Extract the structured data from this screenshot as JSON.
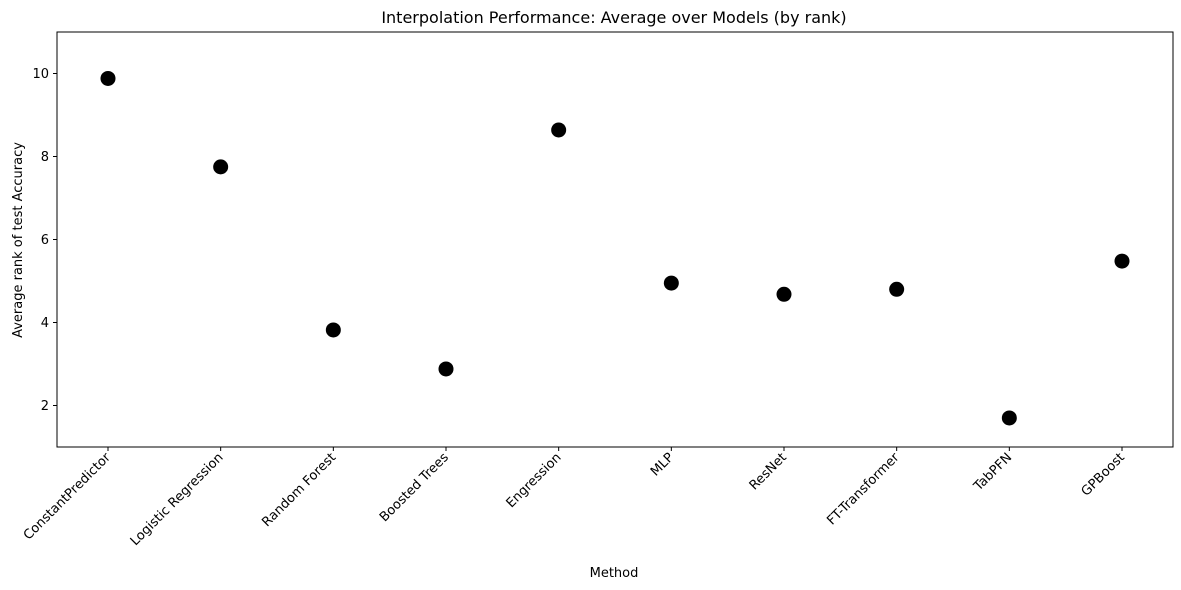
{
  "chart_data": {
    "type": "scatter",
    "title": "Interpolation Performance: Average over Models (by rank)",
    "xlabel": "Method",
    "ylabel": "Average rank of test Accuracy",
    "categories": [
      "ConstantPredictor",
      "Logistic Regression",
      "Random Forest",
      "Boosted Trees",
      "Engression",
      "MLP",
      "ResNet",
      "FT-Transformer",
      "TabPFN",
      "GPBoost"
    ],
    "values": [
      9.88,
      7.75,
      3.82,
      2.88,
      8.64,
      4.95,
      4.68,
      4.8,
      1.7,
      5.48
    ],
    "ylim": [
      1.0,
      11.0
    ],
    "yticks": [
      2,
      4,
      6,
      8,
      10
    ],
    "grid": false,
    "marker_color": "#000000"
  }
}
